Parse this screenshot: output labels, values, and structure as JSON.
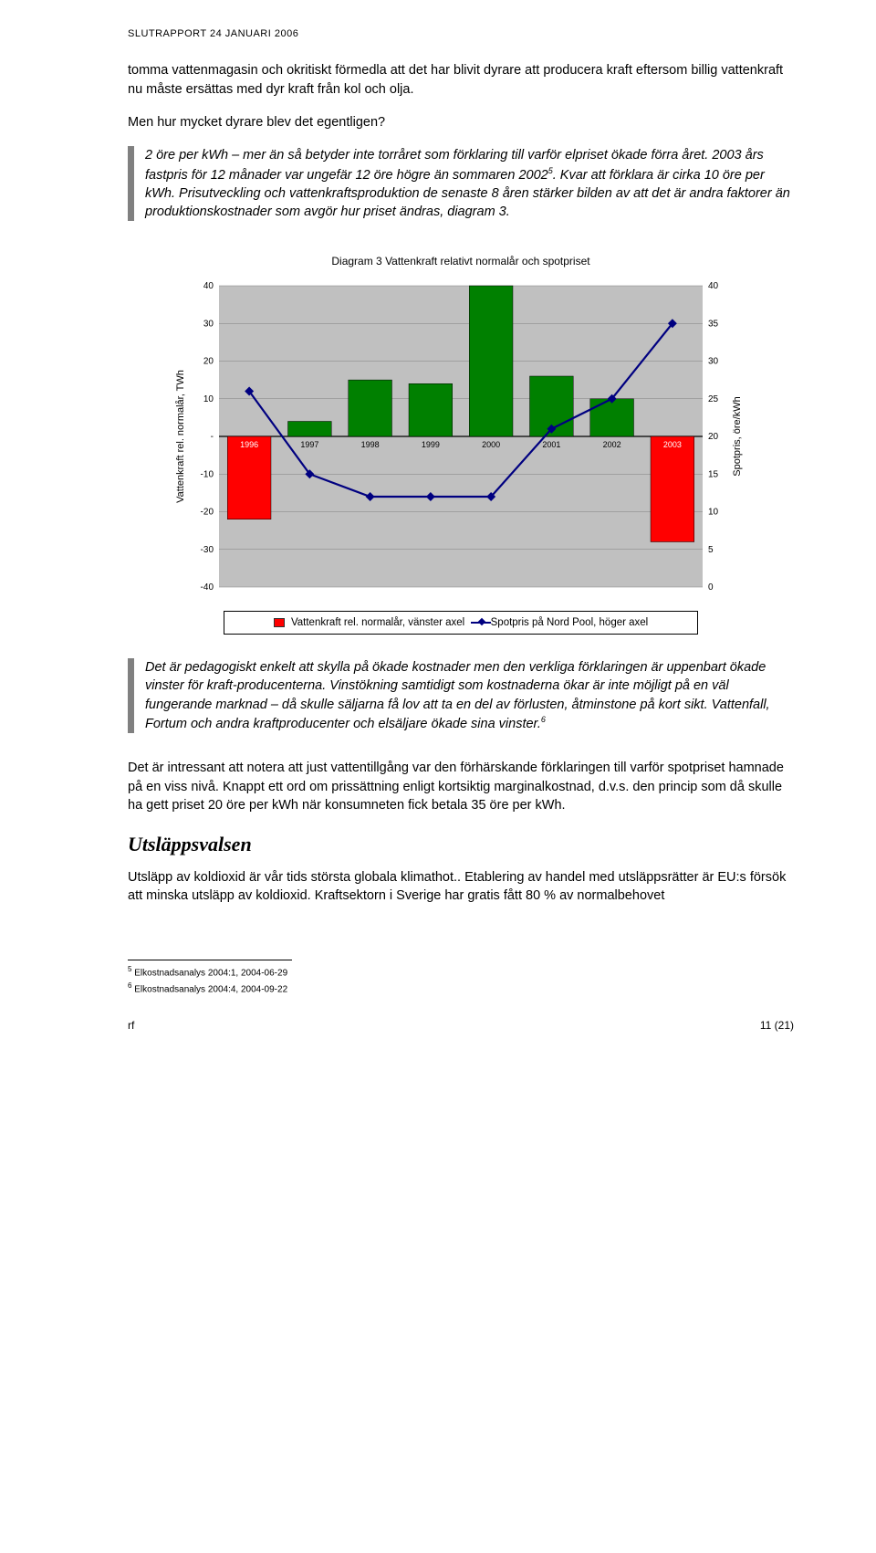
{
  "header": "SLUTRAPPORT 24 JANUARI 2006",
  "para1": "tomma vattenmagasin och okritiskt förmedla att det har blivit dyrare att producera kraft eftersom billig vattenkraft nu måste ersättas med dyr kraft från kol och olja.",
  "para2": "Men hur mycket dyrare blev det egentligen?",
  "callout1_lead": "2 öre per kWh – mer än så betyder inte torråret",
  "callout1_rest": " som förklaring till varför elpriset ökade förra året. 2003 års fastpris för 12 månader var ungefär 12 öre högre än sommaren 2002",
  "callout1_sup": "5",
  "callout1_rest2": ". Kvar att förklara är cirka 10 öre per kWh. Prisutveckling och vattenkraftsproduktion de senaste 8 åren stärker bilden av att det är andra faktorer än produktionskostnader som avgör hur priset ändras, diagram 3.",
  "chart": {
    "title": "Diagram 3 Vattenkraft relativt normalår och spotpriset",
    "type": "bar+line",
    "categories": [
      "1996",
      "1997",
      "1998",
      "1999",
      "2000",
      "2001",
      "2002",
      "2003"
    ],
    "bar_values": [
      -22,
      4,
      15,
      14,
      40,
      16,
      10,
      -28
    ],
    "bar_colors": [
      "#ff0000",
      "#008000",
      "#008000",
      "#008000",
      "#008000",
      "#008000",
      "#008000",
      "#ff0000"
    ],
    "line_values": [
      26,
      15,
      12,
      12,
      12,
      21,
      25,
      35
    ],
    "line_color": "#000080",
    "plot_bg": "#c0c0c0",
    "grid_color": "#808080",
    "y_left": {
      "min": -40,
      "max": 40,
      "step": 10,
      "label": "Vattenkraft rel. normalår, TWh"
    },
    "y_right": {
      "min": 0,
      "max": 40,
      "step": 5,
      "label": "Spotpris, öre/kWh"
    },
    "legend": {
      "swatch_color": "#ff0000",
      "item1": "Vattenkraft rel. normalår, vänster axel",
      "item2": "Spotpris på Nord Pool, höger axel"
    }
  },
  "callout2": "Det är pedagogiskt enkelt att skylla på ökade kostnader men den verkliga förklaringen är uppenbart ökade vinster för kraft-producenterna. Vinstökning samtidigt som kostnaderna ökar är inte möjligt på en väl fungerande marknad – då skulle säljarna få lov att ta en del av förlusten, åtminstone på kort sikt. Vattenfall, Fortum och andra kraftproducenter och elsäljare ökade sina vinster.",
  "callout2_sup": "6",
  "para3": "Det är intressant att notera att just vattentillgång var den förhärskande förklaringen till varför spotpriset hamnade på en viss nivå. Knappt ett ord om prissättning enligt kortsiktig marginalkostnad, d.v.s. den princip som då skulle ha gett priset 20 öre per kWh när konsumneten fick betala 35 öre per kWh.",
  "section_head": "Utsläppsvalsen",
  "para4": "Utsläpp av koldioxid är vår tids största globala klimathot.. Etablering av handel med utsläppsrätter är EU:s försök att minska utsläpp av koldioxid. Kraftsektorn i Sverige har gratis fått 80 % av normalbehovet",
  "footnotes": {
    "fn5": "Elkostnadsanalys 2004:1, 2004-06-29",
    "fn6": "Elkostnadsanalys 2004:4, 2004-09-22"
  },
  "footer": {
    "left": "rf",
    "right": "11 (21)"
  }
}
